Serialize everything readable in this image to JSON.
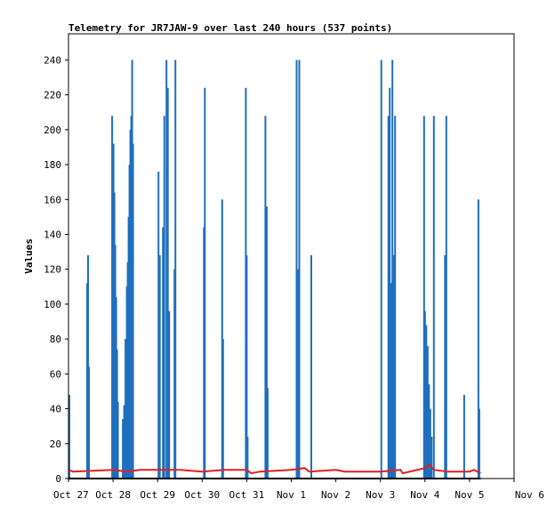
{
  "chart_data": {
    "type": "bar",
    "title": "Telemetry for JR7JAW-9 over last 240 hours (537 points)",
    "xlabel": "",
    "ylabel": "Values",
    "ylim": [
      0,
      255
    ],
    "xlim": [
      0,
      10
    ],
    "x_ticks": [
      {
        "x": 0,
        "label": "Oct 27"
      },
      {
        "x": 1,
        "label": "Oct 28"
      },
      {
        "x": 2,
        "label": "Oct 29"
      },
      {
        "x": 3,
        "label": "Oct 30"
      },
      {
        "x": 4,
        "label": "Oct 31"
      },
      {
        "x": 5,
        "label": "Nov 1"
      },
      {
        "x": 6,
        "label": "Nov 2"
      },
      {
        "x": 7,
        "label": "Nov 3"
      },
      {
        "x": 8,
        "label": "Nov 4"
      },
      {
        "x": 9,
        "label": "Nov 5"
      },
      {
        "x": 10,
        "label": "Nov 6"
      }
    ],
    "y_ticks": [
      0,
      20,
      40,
      60,
      80,
      100,
      120,
      140,
      160,
      180,
      200,
      220,
      240
    ],
    "grid": false,
    "colors": {
      "spikes": "#1f6fbf",
      "trend": "#e02020",
      "zero": "#000000",
      "frame": "#000000"
    },
    "series": [
      {
        "type": "bar",
        "color": "#1f6fbf",
        "points": [
          [
            0.02,
            48
          ],
          [
            0.42,
            112
          ],
          [
            0.44,
            128
          ],
          [
            0.46,
            64
          ],
          [
            0.98,
            208
          ],
          [
            1.01,
            192
          ],
          [
            1.03,
            164
          ],
          [
            1.05,
            134
          ],
          [
            1.07,
            104
          ],
          [
            1.09,
            74
          ],
          [
            1.11,
            44
          ],
          [
            1.22,
            34
          ],
          [
            1.25,
            42
          ],
          [
            1.28,
            80
          ],
          [
            1.31,
            110
          ],
          [
            1.33,
            124
          ],
          [
            1.35,
            150
          ],
          [
            1.37,
            180
          ],
          [
            1.39,
            200
          ],
          [
            1.41,
            208
          ],
          [
            1.43,
            240
          ],
          [
            1.45,
            192
          ],
          [
            2.02,
            176
          ],
          [
            2.05,
            128
          ],
          [
            2.12,
            144
          ],
          [
            2.15,
            208
          ],
          [
            2.2,
            240
          ],
          [
            2.23,
            224
          ],
          [
            2.26,
            96
          ],
          [
            2.38,
            120
          ],
          [
            2.4,
            240
          ],
          [
            3.04,
            144
          ],
          [
            3.06,
            224
          ],
          [
            3.45,
            160
          ],
          [
            3.47,
            80
          ],
          [
            3.98,
            224
          ],
          [
            4.0,
            128
          ],
          [
            4.02,
            24
          ],
          [
            4.42,
            208
          ],
          [
            4.45,
            156
          ],
          [
            4.47,
            52
          ],
          [
            5.12,
            240
          ],
          [
            5.15,
            120
          ],
          [
            5.18,
            240
          ],
          [
            5.45,
            128
          ],
          [
            7.02,
            240
          ],
          [
            7.18,
            208
          ],
          [
            7.21,
            224
          ],
          [
            7.24,
            112
          ],
          [
            7.27,
            240
          ],
          [
            7.3,
            128
          ],
          [
            7.33,
            208
          ],
          [
            7.98,
            208
          ],
          [
            8.0,
            96
          ],
          [
            8.03,
            88
          ],
          [
            8.06,
            76
          ],
          [
            8.09,
            54
          ],
          [
            8.12,
            40
          ],
          [
            8.15,
            24
          ],
          [
            8.2,
            208
          ],
          [
            8.45,
            128
          ],
          [
            8.48,
            208
          ],
          [
            8.88,
            48
          ],
          [
            9.2,
            160
          ],
          [
            9.22,
            40
          ]
        ]
      },
      {
        "type": "line",
        "color": "#e02020",
        "points": [
          [
            0,
            5
          ],
          [
            0.1,
            4
          ],
          [
            1,
            5
          ],
          [
            1.3,
            4
          ],
          [
            1.6,
            5
          ],
          [
            2,
            5
          ],
          [
            2.5,
            5
          ],
          [
            3,
            4
          ],
          [
            3.5,
            5
          ],
          [
            4,
            5
          ],
          [
            4.1,
            3
          ],
          [
            4.3,
            4
          ],
          [
            5,
            5
          ],
          [
            5.3,
            6
          ],
          [
            5.4,
            4
          ],
          [
            6,
            5
          ],
          [
            6.2,
            4
          ],
          [
            7,
            4
          ],
          [
            7.45,
            5
          ],
          [
            7.5,
            3
          ],
          [
            8,
            6
          ],
          [
            8.1,
            8
          ],
          [
            8.2,
            5
          ],
          [
            8.5,
            4
          ],
          [
            9,
            4
          ],
          [
            9.1,
            5
          ],
          [
            9.25,
            3
          ]
        ]
      },
      {
        "type": "line",
        "color": "#000000",
        "points": [
          [
            0,
            0
          ],
          [
            9.25,
            0
          ]
        ]
      }
    ]
  }
}
